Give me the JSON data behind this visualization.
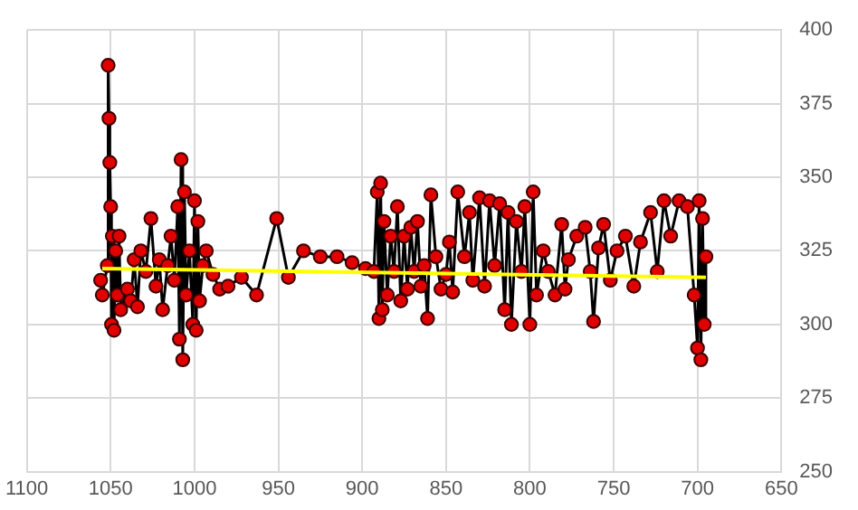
{
  "chart_data": {
    "type": "line",
    "marker": "circle",
    "grid": true,
    "legend": false,
    "xlim": [
      1100,
      650
    ],
    "xticks": [
      1100,
      1050,
      1000,
      950,
      900,
      850,
      800,
      750,
      700,
      650
    ],
    "ylim": [
      250,
      400
    ],
    "yticks": [
      250,
      275,
      300,
      325,
      350,
      375,
      400
    ],
    "series": [
      {
        "color": "#e00000",
        "x": [
          1056,
          1055,
          1052,
          1051.5,
          1051,
          1050.5,
          1050,
          1049.5,
          1049,
          1048,
          1047,
          1046,
          1045,
          1044,
          1040,
          1038,
          1036,
          1034,
          1032,
          1029,
          1026,
          1023,
          1021,
          1019,
          1016,
          1014,
          1012,
          1010,
          1009,
          1008,
          1007,
          1006,
          1005,
          1003,
          1001,
          1000,
          999,
          998,
          997,
          995,
          993,
          989,
          985,
          980,
          972,
          963,
          951,
          944,
          935,
          925,
          915,
          906,
          898,
          893,
          891,
          890,
          889,
          888,
          887,
          885,
          883,
          881,
          879,
          877,
          875,
          873,
          871,
          869,
          867,
          865,
          863,
          861,
          859,
          856,
          853,
          850,
          848,
          846,
          843,
          839,
          836,
          834,
          830,
          827,
          824,
          821,
          818,
          815,
          813,
          811,
          808,
          805,
          803,
          800,
          798,
          796,
          792,
          789,
          785,
          781,
          779,
          777,
          772,
          767,
          764,
          762,
          759,
          756,
          752,
          748,
          743,
          738,
          734,
          728,
          724,
          720,
          716,
          711,
          706,
          702,
          700,
          699,
          698,
          697,
          696,
          695
        ],
        "values": [
          315,
          310,
          320,
          388,
          370,
          355,
          340,
          300,
          330,
          298,
          325,
          310,
          330,
          305,
          312,
          308,
          322,
          306,
          325,
          318,
          336,
          313,
          322,
          305,
          320,
          330,
          315,
          340,
          295,
          356,
          288,
          345,
          310,
          325,
          300,
          342,
          298,
          335,
          308,
          320,
          325,
          317,
          312,
          313,
          316,
          310,
          336,
          316,
          325,
          323,
          323,
          321,
          319,
          318,
          345,
          302,
          348,
          305,
          335,
          310,
          330,
          318,
          340,
          308,
          330,
          312,
          333,
          318,
          335,
          313,
          320,
          302,
          344,
          323,
          312,
          317,
          328,
          311,
          345,
          323,
          338,
          315,
          343,
          313,
          342,
          320,
          341,
          305,
          338,
          300,
          335,
          318,
          340,
          300,
          345,
          310,
          325,
          318,
          310,
          334,
          312,
          322,
          330,
          333,
          318,
          301,
          326,
          334,
          315,
          325,
          330,
          313,
          328,
          338,
          318,
          342,
          330,
          342,
          340,
          310,
          292,
          342,
          288,
          336,
          300,
          323
        ]
      },
      {
        "color": "#ffff00",
        "marker": "none",
        "x": [
          1055,
          695
        ],
        "values": [
          319,
          316
        ]
      }
    ]
  }
}
